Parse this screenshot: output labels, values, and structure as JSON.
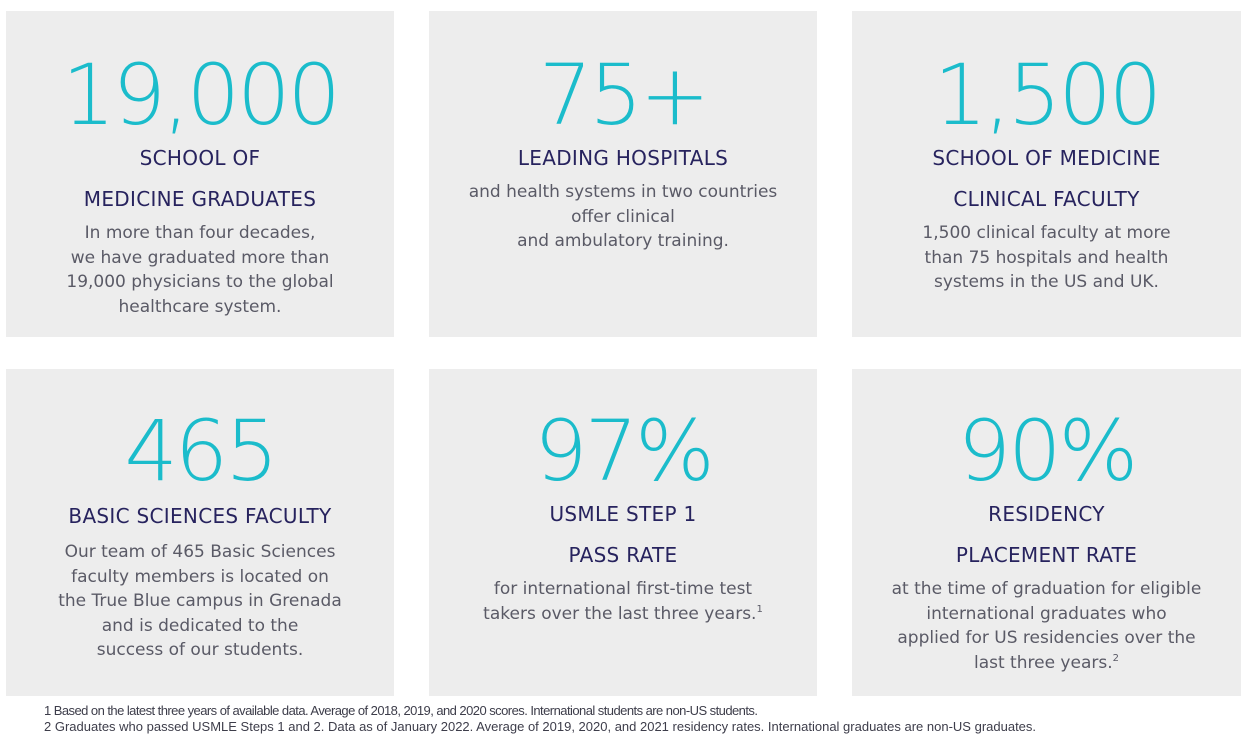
{
  "accent_color": "#1bbccb",
  "title_color": "#27235e",
  "cards": [
    {
      "stat": "19,000",
      "title_lines": [
        "SCHOOL OF",
        "MEDICINE GRADUATES"
      ],
      "desc_lines": [
        "In more than four decades,",
        "we have graduated more than",
        "19,000 physicians to the global",
        "healthcare system."
      ]
    },
    {
      "stat": "75+",
      "title_lines": [
        "LEADING HOSPITALS"
      ],
      "desc_lines": [
        "and health systems in two countries",
        "offer clinical",
        "and ambulatory training."
      ]
    },
    {
      "stat": "1,500",
      "title_lines": [
        "SCHOOL OF MEDICINE",
        "CLINICAL FACULTY"
      ],
      "desc_lines": [
        "1,500 clinical faculty at more",
        "than 75 hospitals and health",
        "systems in the US and UK."
      ]
    },
    {
      "stat": "465",
      "title_lines": [
        "BASIC SCIENCES FACULTY"
      ],
      "desc_lines": [
        "Our team of 465 Basic Sciences",
        "faculty members is located on",
        "the True Blue campus in Grenada",
        "and is dedicated to the",
        "success of our students."
      ]
    },
    {
      "stat": "97%",
      "title_lines": [
        "USMLE STEP 1",
        "PASS RATE"
      ],
      "desc_lines": [
        "for international first-time test",
        "takers over the last three years."
      ],
      "footnote_ref": "1"
    },
    {
      "stat": "90%",
      "title_lines": [
        "RESIDENCY",
        "PLACEMENT RATE"
      ],
      "desc_lines": [
        "at the time of graduation for eligible",
        "international graduates who",
        "applied for US residencies over the",
        "last three years."
      ],
      "footnote_ref": "2"
    }
  ],
  "footnotes": [
    "1 Based on the latest three years of available data. Average of 2018, 2019, and 2020 scores. International students are non-US students.",
    "2 Graduates who passed USMLE Steps 1 and 2. Data as of January 2022. Average of 2019, 2020, and 2021 residency rates. International graduates are non-US graduates."
  ]
}
